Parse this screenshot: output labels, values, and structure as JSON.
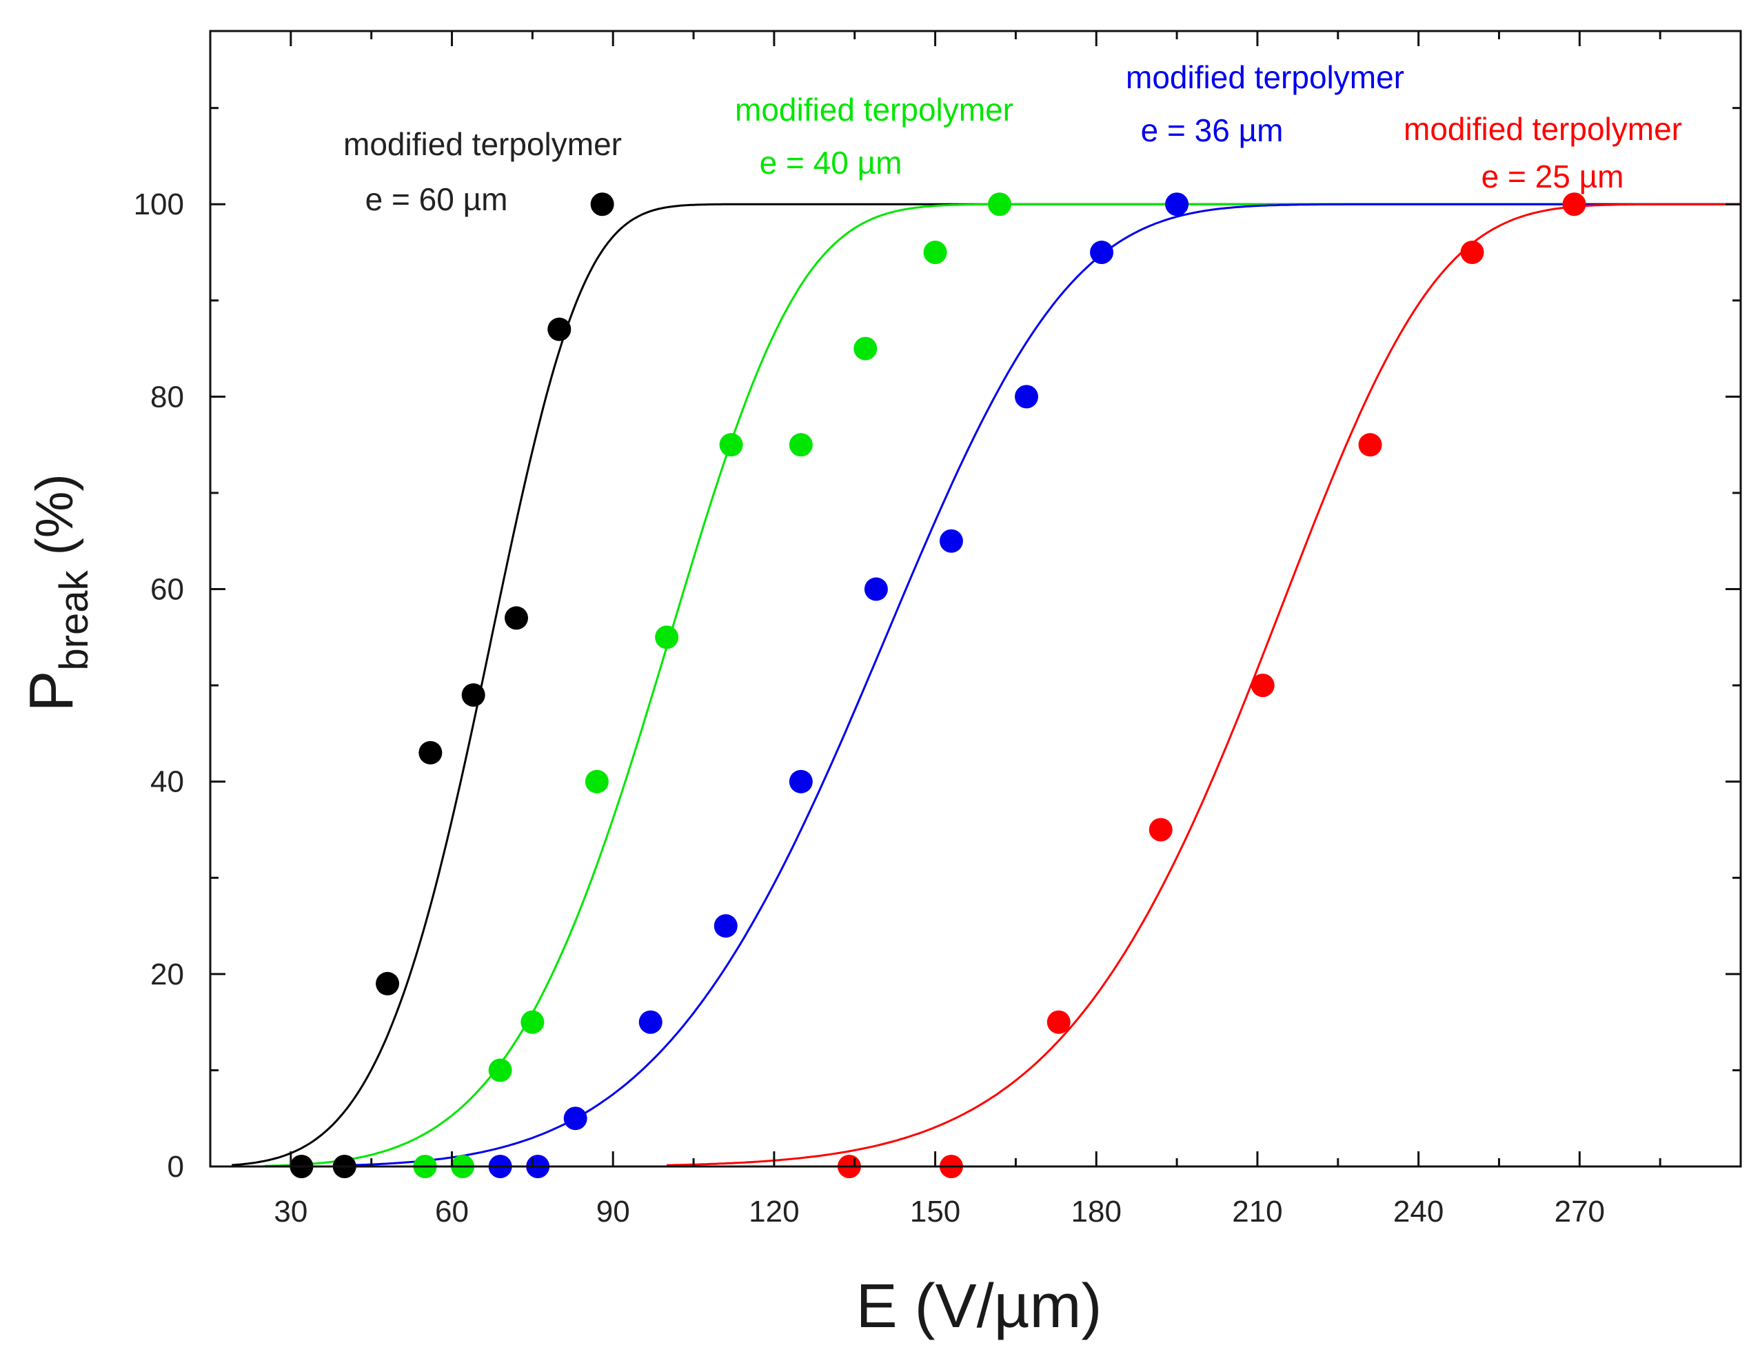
{
  "chart_data": {
    "type": "scatter",
    "title": "",
    "xlabel": "E (V/µm)",
    "ylabel_main": "P",
    "ylabel_sub": "break",
    "ylabel_unit": "(%)",
    "xlim": [
      15,
      300
    ],
    "ylim": [
      0,
      118
    ],
    "xticks": [
      30,
      60,
      90,
      120,
      150,
      180,
      210,
      240,
      270
    ],
    "yticks": [
      0,
      20,
      40,
      60,
      80,
      100
    ],
    "grid": false,
    "series": [
      {
        "name": "modified terpolymer e = 60 µm",
        "label_line1": "modified terpolymer",
        "label_line2": "e = 60 µm",
        "color": "#000000",
        "x": [
          32,
          40,
          48,
          56,
          64,
          72,
          80,
          88
        ],
        "y": [
          0,
          0,
          19,
          43,
          49,
          57,
          87,
          100
        ],
        "fit": {
          "kind": "weibull",
          "scale": 70.5,
          "shape": 5.0,
          "x_start": 19
        }
      },
      {
        "name": "modified terpolymer e = 40 µm",
        "label_line1": "modified terpolymer",
        "label_line2": "e = 40 µm",
        "color": "#00e600",
        "x": [
          55,
          62,
          69,
          75,
          87,
          100,
          112,
          125,
          137,
          150,
          162
        ],
        "y": [
          0,
          0,
          10,
          15,
          40,
          55,
          75,
          75,
          85,
          95,
          100
        ],
        "fit": {
          "kind": "weibull",
          "scale": 105,
          "shape": 5.2,
          "x_start": 25
        }
      },
      {
        "name": "modified terpolymer e = 36 µm",
        "label_line1": "modified terpolymer",
        "label_line2": "e = 36 µm",
        "color": "#0000ee",
        "x": [
          69,
          76,
          83,
          97,
          111,
          125,
          139,
          153,
          167,
          181,
          195
        ],
        "y": [
          0,
          0,
          5,
          15,
          25,
          40,
          60,
          65,
          80,
          95,
          100
        ],
        "fit": {
          "kind": "weibull",
          "scale": 147,
          "shape": 5.2,
          "x_start": 40
        }
      },
      {
        "name": "modified terpolymer e = 25 µm",
        "label_line1": "modified terpolymer",
        "label_line2": "e = 25 µm",
        "color": "#ff0000",
        "x": [
          134,
          153,
          173,
          192,
          211,
          231,
          250,
          269
        ],
        "y": [
          0,
          0,
          15,
          35,
          50,
          75,
          95,
          100
        ],
        "fit": {
          "kind": "weibull",
          "scale": 218,
          "shape": 8.5,
          "x_start": 100
        }
      }
    ]
  }
}
